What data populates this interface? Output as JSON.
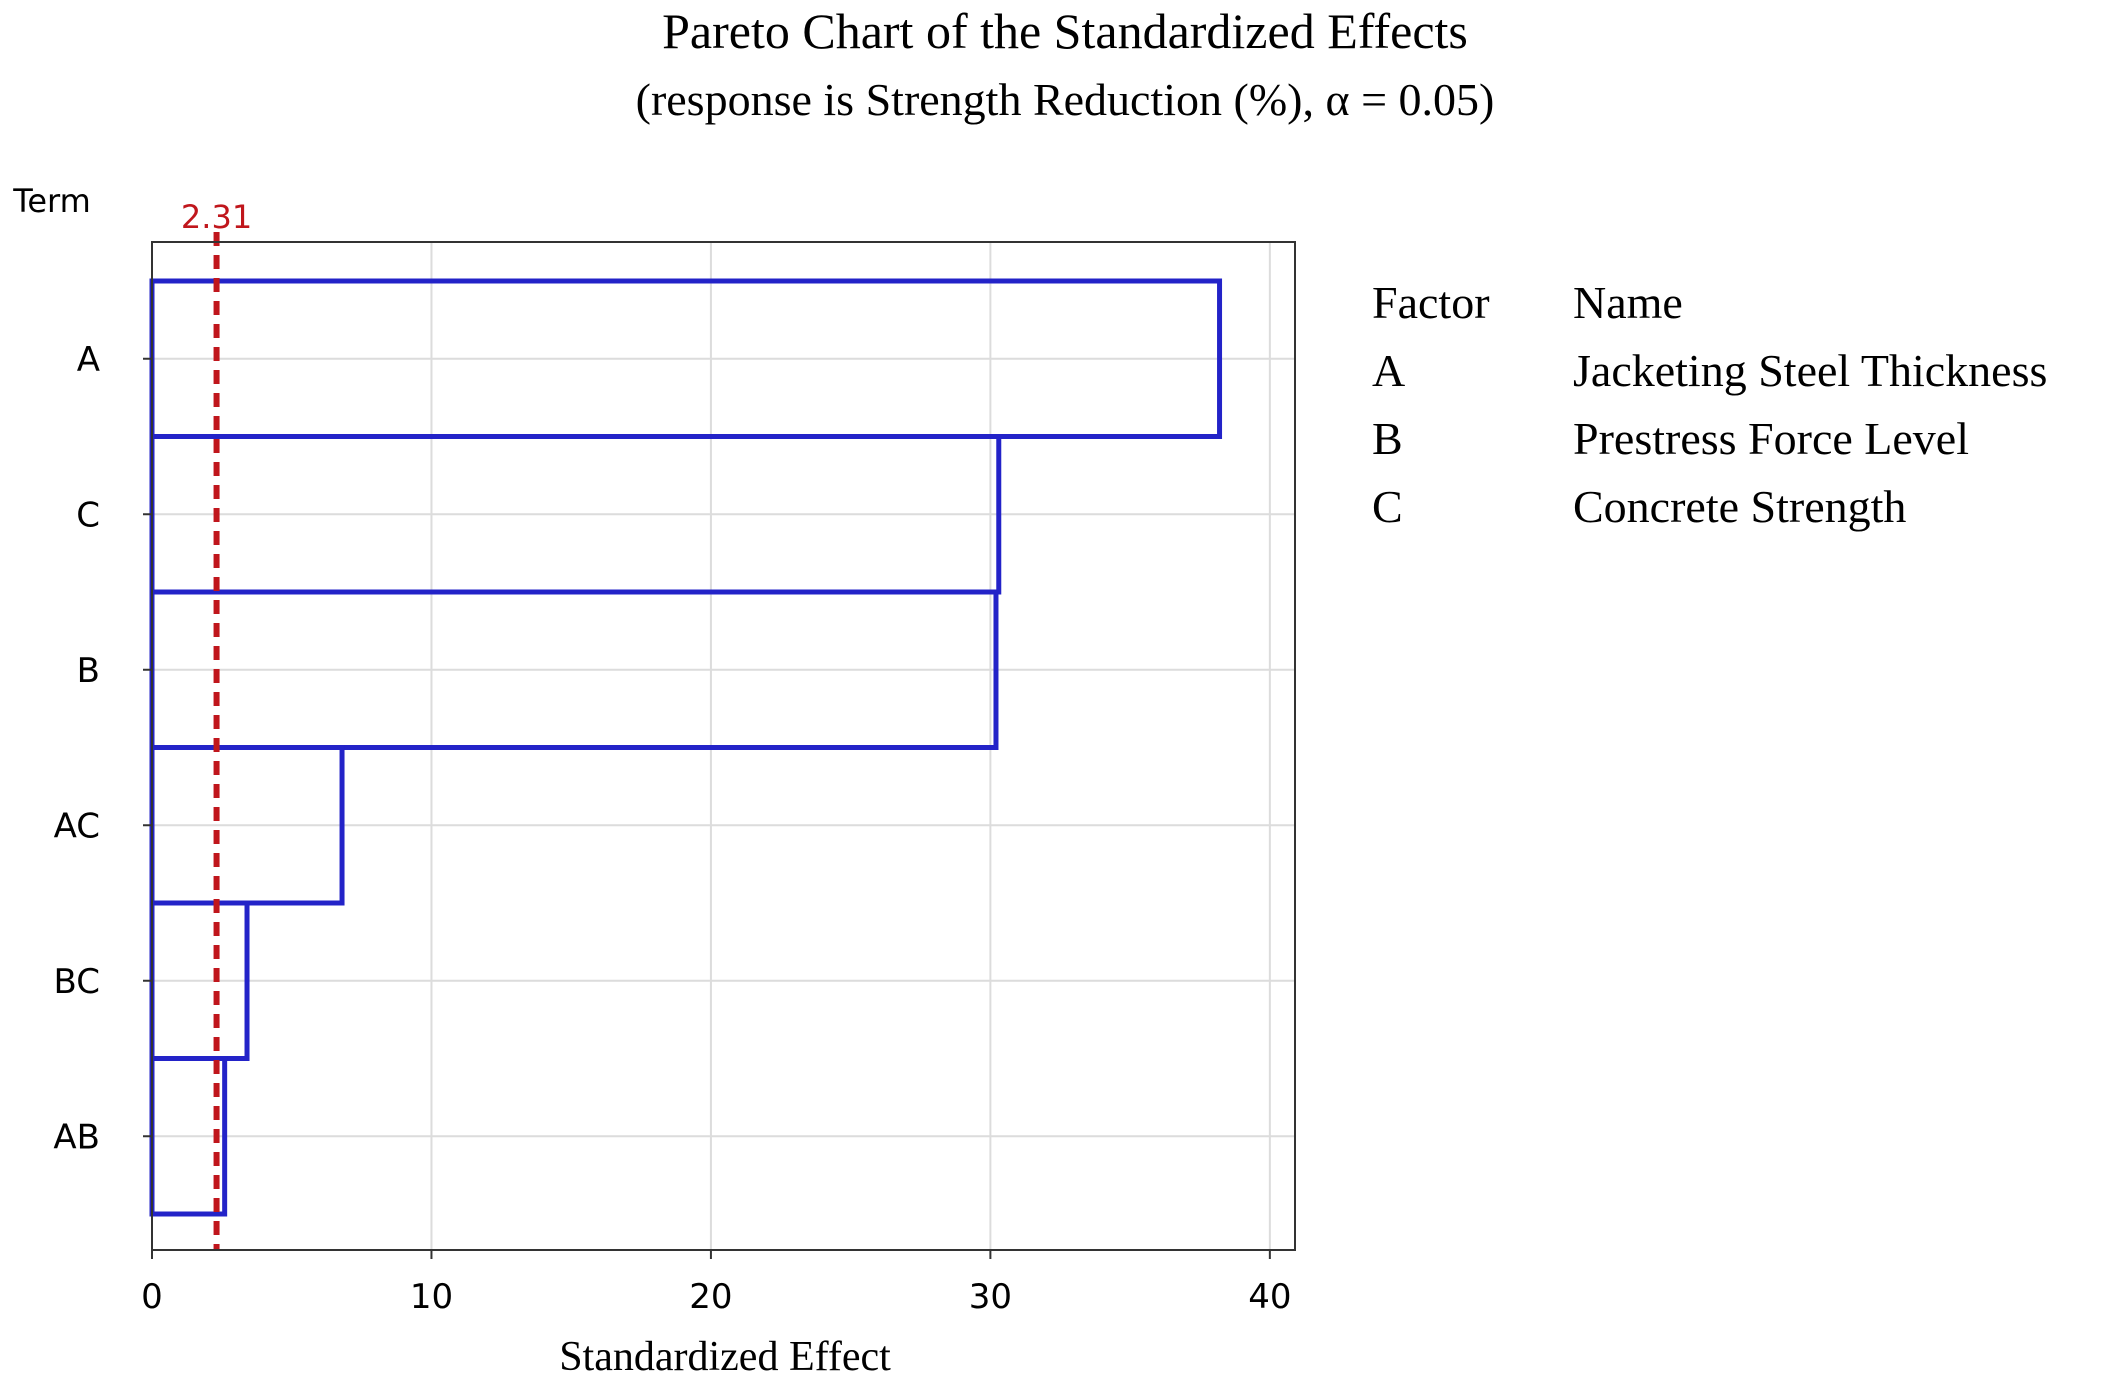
{
  "chart_data": {
    "type": "bar",
    "orientation": "horizontal",
    "title": "Pareto Chart of the Standardized Effects",
    "subtitle": "(response is Strength Reduction (%), α = 0.05)",
    "ylabel": "Term",
    "xlabel": "Standardized Effect",
    "categories": [
      "A",
      "C",
      "B",
      "AC",
      "BC",
      "AB"
    ],
    "values": [
      38.2,
      30.3,
      30.2,
      6.8,
      3.4,
      2.6
    ],
    "xlim": [
      0,
      40.9
    ],
    "xticks": [
      0,
      10,
      20,
      30,
      40
    ],
    "reference_line": {
      "value": 2.31,
      "label": "2.31",
      "color": "#c0161c"
    },
    "grid": true,
    "bar_edge_color": "#2323c8",
    "legend": {
      "headers": [
        "Factor",
        "Name"
      ],
      "rows": [
        {
          "factor": "A",
          "name": "Jacketing Steel Thickness"
        },
        {
          "factor": "B",
          "name": "Prestress Force Level"
        },
        {
          "factor": "C",
          "name": "Concrete Strength"
        }
      ]
    }
  }
}
